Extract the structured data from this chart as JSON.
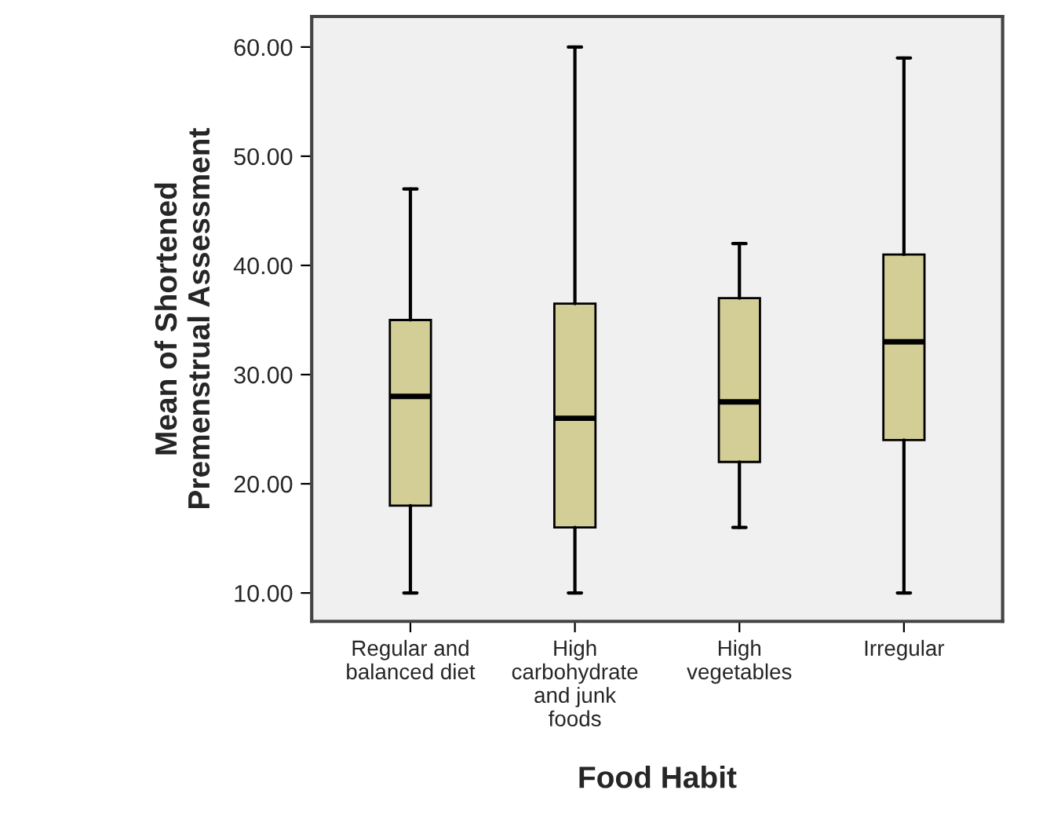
{
  "chart_data": {
    "type": "box",
    "xlabel": "Food Habit",
    "ylabel": "Mean of Shortened\nPremenstrual Assessment",
    "categories": [
      "Regular and\nbalanced diet",
      "High\ncarbohydrate\nand junk\nfoods",
      "High\nvegetables",
      "Irregular"
    ],
    "color": "#d3cd96",
    "boxes": [
      {
        "low": 10,
        "q1": 18,
        "median": 28,
        "q3": 35,
        "high": 47
      },
      {
        "low": 10,
        "q1": 16,
        "median": 26,
        "q3": 36.5,
        "high": 60
      },
      {
        "low": 16,
        "q1": 22,
        "median": 27.5,
        "q3": 37,
        "high": 42
      },
      {
        "low": 10,
        "q1": 24,
        "median": 33,
        "q3": 41,
        "high": 59
      }
    ],
    "ylim": [
      7.4,
      62.8
    ],
    "yticks": [
      {
        "value": 10,
        "label": "10.00"
      },
      {
        "value": 20,
        "label": "20.00"
      },
      {
        "value": 30,
        "label": "30.00"
      },
      {
        "value": 40,
        "label": "40.00"
      },
      {
        "value": 50,
        "label": "50.00"
      },
      {
        "value": 60,
        "label": "60.00"
      }
    ],
    "grid": false
  }
}
